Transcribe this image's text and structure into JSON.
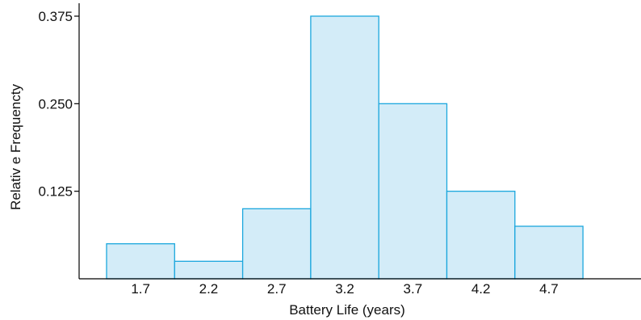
{
  "chart_data": {
    "type": "bar",
    "title": "",
    "xlabel": "Battery Life (years)",
    "ylabel": "Relativ e Frequencty",
    "categories": [
      "1.7",
      "2.2",
      "2.7",
      "3.2",
      "3.7",
      "4.2",
      "4.7"
    ],
    "values": [
      0.05,
      0.025,
      0.1,
      0.375,
      0.25,
      0.125,
      0.075
    ],
    "ylim": [
      0,
      0.375
    ],
    "yticks": [
      "0.125",
      "0.250",
      "0.375"
    ],
    "grid": false,
    "bar_fill": "#d3ecf8",
    "bar_stroke": "#1ba7dd"
  }
}
